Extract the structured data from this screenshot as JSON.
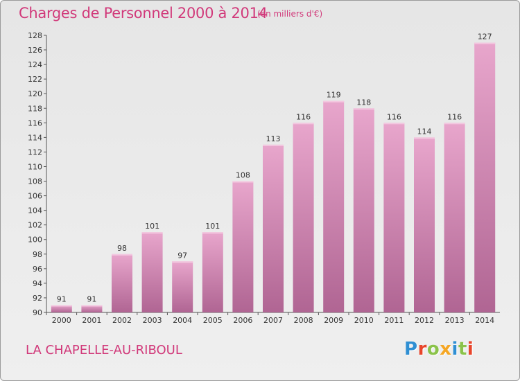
{
  "title": "Charges de Personnel 2000 à 2014",
  "unit_note": "(en milliers d'€)",
  "town": "LA CHAPELLE-AU-RIBOUL",
  "logo": {
    "letters": [
      "P",
      "r",
      "o",
      "x",
      "i",
      "t",
      "i"
    ],
    "colors": [
      "#2f8fd3",
      "#e8452b",
      "#8bc34a",
      "#f5a623",
      "#2f8fd3",
      "#8bc34a",
      "#e8452b"
    ]
  },
  "colors": {
    "bar_top": "#e8a6cc",
    "bar_bottom": "#b06593",
    "title": "#d1397a"
  },
  "chart_data": {
    "type": "bar",
    "title": "Charges de Personnel 2000 à 2014",
    "xlabel": "",
    "ylabel": "",
    "categories": [
      "2000",
      "2001",
      "2002",
      "2003",
      "2004",
      "2005",
      "2006",
      "2007",
      "2008",
      "2009",
      "2010",
      "2011",
      "2012",
      "2013",
      "2014"
    ],
    "values": [
      91,
      91,
      98,
      101,
      97,
      101,
      108,
      113,
      116,
      119,
      118,
      116,
      114,
      116,
      127
    ],
    "ylim": [
      90,
      128
    ],
    "yticks": [
      90,
      92,
      94,
      96,
      98,
      100,
      102,
      104,
      106,
      108,
      110,
      112,
      114,
      116,
      118,
      120,
      122,
      124,
      126,
      128
    ],
    "grid": false,
    "legend": "none"
  }
}
